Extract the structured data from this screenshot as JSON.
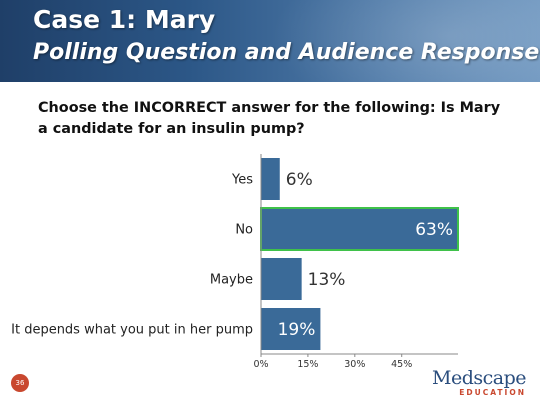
{
  "header": {
    "title": "Case 1: Mary",
    "subtitle": "Polling Question and Audience Response"
  },
  "question": "Choose the INCORRECT answer for the following: Is Mary a candidate for an insulin pump?",
  "chart_data": {
    "type": "bar",
    "orientation": "horizontal",
    "categories": [
      "Yes",
      "No",
      "Maybe",
      "It depends what you put in her pump"
    ],
    "values": [
      6,
      63,
      13,
      19
    ],
    "value_labels": [
      "6%",
      "63%",
      "13%",
      "19%"
    ],
    "highlighted_category": "No",
    "x_ticks": [
      "0%",
      "15%",
      "30%",
      "45%"
    ],
    "xlim": [
      0,
      63
    ],
    "grid": false,
    "bar_color": "#3a6a98",
    "highlight_border_color": "#3fc14a",
    "title": "",
    "xlabel": "",
    "ylabel": ""
  },
  "footer": {
    "page_number": "36",
    "logo_name": "Medscape",
    "logo_sub": "EDUCATION"
  }
}
